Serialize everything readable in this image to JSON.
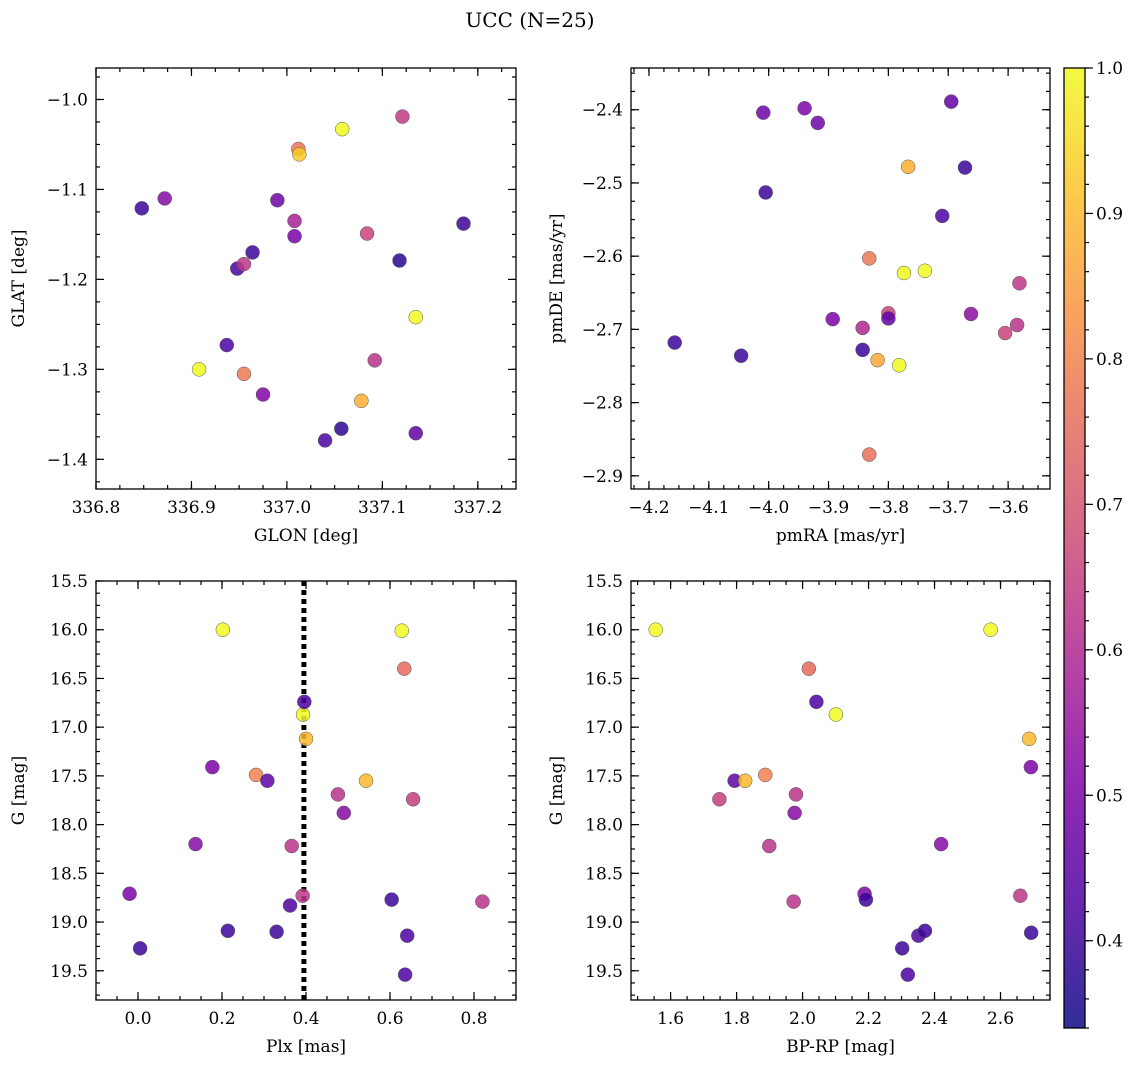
{
  "figure": {
    "title": "UCC (N=25)"
  },
  "colorbar": {
    "min": 0.34,
    "max": 1.0,
    "ticks": [
      0.4,
      0.5,
      0.6,
      0.7,
      0.8,
      0.9,
      1.0
    ],
    "tick_labels": [
      "0.4",
      "0.5",
      "0.6",
      "0.7",
      "0.8",
      "0.9",
      "1.0"
    ],
    "colormap": "plasma"
  },
  "chart_data": [
    {
      "type": "scatter",
      "xlabel": "GLON [deg]",
      "ylabel": "GLAT [deg]",
      "xlim": [
        336.8,
        337.24
      ],
      "ylim": [
        -1.433,
        -0.965
      ],
      "y_inverted": false,
      "xticks": [
        336.8,
        336.9,
        337.0,
        337.1,
        337.2
      ],
      "xtick_labels": [
        "336.8",
        "336.9",
        "337.0",
        "337.1",
        "337.2"
      ],
      "yticks": [
        -1.4,
        -1.3,
        -1.2,
        -1.1,
        -1.0
      ],
      "ytick_labels": [
        "−1.4",
        "−1.3",
        "−1.2",
        "−1.1",
        "−1.0"
      ],
      "points": [
        {
          "x": 336.848,
          "y": -1.121,
          "c": 0.4
        },
        {
          "x": 336.872,
          "y": -1.11,
          "c": 0.52
        },
        {
          "x": 336.908,
          "y": -1.3,
          "c": 1.0
        },
        {
          "x": 336.937,
          "y": -1.273,
          "c": 0.42
        },
        {
          "x": 336.948,
          "y": -1.188,
          "c": 0.42
        },
        {
          "x": 336.955,
          "y": -1.183,
          "c": 0.63
        },
        {
          "x": 336.955,
          "y": -1.305,
          "c": 0.78
        },
        {
          "x": 336.964,
          "y": -1.17,
          "c": 0.4
        },
        {
          "x": 336.975,
          "y": -1.328,
          "c": 0.51
        },
        {
          "x": 336.99,
          "y": -1.112,
          "c": 0.48
        },
        {
          "x": 337.008,
          "y": -1.135,
          "c": 0.58
        },
        {
          "x": 337.008,
          "y": -1.152,
          "c": 0.5
        },
        {
          "x": 337.012,
          "y": -1.055,
          "c": 0.77
        },
        {
          "x": 337.013,
          "y": -1.061,
          "c": 0.93
        },
        {
          "x": 337.04,
          "y": -1.379,
          "c": 0.42
        },
        {
          "x": 337.057,
          "y": -1.366,
          "c": 0.38
        },
        {
          "x": 337.058,
          "y": -1.033,
          "c": 1.0
        },
        {
          "x": 337.078,
          "y": -1.335,
          "c": 0.88
        },
        {
          "x": 337.084,
          "y": -1.149,
          "c": 0.66
        },
        {
          "x": 337.092,
          "y": -1.29,
          "c": 0.62
        },
        {
          "x": 337.118,
          "y": -1.179,
          "c": 0.38
        },
        {
          "x": 337.121,
          "y": -1.019,
          "c": 0.64
        },
        {
          "x": 337.135,
          "y": -1.242,
          "c": 1.0
        },
        {
          "x": 337.135,
          "y": -1.371,
          "c": 0.46
        },
        {
          "x": 337.185,
          "y": -1.138,
          "c": 0.4
        }
      ]
    },
    {
      "type": "scatter",
      "xlabel": "pmRA [mas/yr]",
      "ylabel": "pmDE [mas/yr]",
      "xlim": [
        -4.23,
        -3.53
      ],
      "ylim": [
        -2.918,
        -2.343
      ],
      "y_inverted": false,
      "xticks": [
        -4.2,
        -4.1,
        -4.0,
        -3.9,
        -3.8,
        -3.7,
        -3.6
      ],
      "xtick_labels": [
        "−4.2",
        "−4.1",
        "−4.0",
        "−3.9",
        "−3.8",
        "−3.7",
        "−3.6"
      ],
      "yticks": [
        -2.9,
        -2.8,
        -2.7,
        -2.6,
        -2.5,
        -2.4
      ],
      "ytick_labels": [
        "−2.9",
        "−2.8",
        "−2.7",
        "−2.6",
        "−2.5",
        "−2.4"
      ],
      "points": [
        {
          "x": -4.157,
          "y": -2.718,
          "c": 0.4
        },
        {
          "x": -4.046,
          "y": -2.736,
          "c": 0.4
        },
        {
          "x": -4.009,
          "y": -2.404,
          "c": 0.48
        },
        {
          "x": -4.005,
          "y": -2.513,
          "c": 0.4
        },
        {
          "x": -3.94,
          "y": -2.398,
          "c": 0.5
        },
        {
          "x": -3.918,
          "y": -2.418,
          "c": 0.48
        },
        {
          "x": -3.893,
          "y": -2.686,
          "c": 0.5
        },
        {
          "x": -3.843,
          "y": -2.698,
          "c": 0.6
        },
        {
          "x": -3.843,
          "y": -2.728,
          "c": 0.4
        },
        {
          "x": -3.832,
          "y": -2.603,
          "c": 0.78
        },
        {
          "x": -3.832,
          "y": -2.871,
          "c": 0.76
        },
        {
          "x": -3.818,
          "y": -2.742,
          "c": 0.87
        },
        {
          "x": -3.8,
          "y": -2.678,
          "c": 0.66
        },
        {
          "x": -3.8,
          "y": -2.685,
          "c": 0.45
        },
        {
          "x": -3.782,
          "y": -2.749,
          "c": 1.0
        },
        {
          "x": -3.774,
          "y": -2.623,
          "c": 1.0
        },
        {
          "x": -3.767,
          "y": -2.478,
          "c": 0.88
        },
        {
          "x": -3.739,
          "y": -2.62,
          "c": 1.0
        },
        {
          "x": -3.71,
          "y": -2.545,
          "c": 0.42
        },
        {
          "x": -3.695,
          "y": -2.389,
          "c": 0.46
        },
        {
          "x": -3.672,
          "y": -2.479,
          "c": 0.4
        },
        {
          "x": -3.662,
          "y": -2.679,
          "c": 0.53
        },
        {
          "x": -3.605,
          "y": -2.705,
          "c": 0.66
        },
        {
          "x": -3.585,
          "y": -2.694,
          "c": 0.62
        },
        {
          "x": -3.581,
          "y": -2.637,
          "c": 0.63
        }
      ]
    },
    {
      "type": "scatter",
      "xlabel": "Plx [mas]",
      "ylabel": "G [mag]",
      "xlim": [
        -0.1,
        0.9
      ],
      "ylim": [
        19.8,
        15.5
      ],
      "y_inverted": true,
      "xticks": [
        0.0,
        0.2,
        0.4,
        0.6,
        0.8
      ],
      "xtick_labels": [
        "0.0",
        "0.2",
        "0.4",
        "0.6",
        "0.8"
      ],
      "yticks": [
        15.5,
        16.0,
        16.5,
        17.0,
        17.5,
        18.0,
        18.5,
        19.0,
        19.5
      ],
      "ytick_labels": [
        "15.5",
        "16.0",
        "16.5",
        "17.0",
        "17.5",
        "18.0",
        "18.5",
        "19.0",
        "19.5"
      ],
      "vline": {
        "x": 0.395,
        "style": "dotted"
      },
      "points": [
        {
          "x": -0.02,
          "y": 18.71,
          "c": 0.5
        },
        {
          "x": 0.005,
          "y": 19.27,
          "c": 0.4
        },
        {
          "x": 0.137,
          "y": 18.2,
          "c": 0.52
        },
        {
          "x": 0.177,
          "y": 17.41,
          "c": 0.5
        },
        {
          "x": 0.202,
          "y": 16.0,
          "c": 1.0
        },
        {
          "x": 0.214,
          "y": 19.09,
          "c": 0.4
        },
        {
          "x": 0.281,
          "y": 17.49,
          "c": 0.8
        },
        {
          "x": 0.308,
          "y": 17.55,
          "c": 0.45
        },
        {
          "x": 0.33,
          "y": 19.1,
          "c": 0.4
        },
        {
          "x": 0.362,
          "y": 18.83,
          "c": 0.42
        },
        {
          "x": 0.366,
          "y": 18.22,
          "c": 0.62
        },
        {
          "x": 0.392,
          "y": 18.73,
          "c": 0.63
        },
        {
          "x": 0.393,
          "y": 16.87,
          "c": 1.0
        },
        {
          "x": 0.396,
          "y": 16.74,
          "c": 0.42
        },
        {
          "x": 0.4,
          "y": 17.12,
          "c": 0.9
        },
        {
          "x": 0.476,
          "y": 17.69,
          "c": 0.62
        },
        {
          "x": 0.49,
          "y": 17.88,
          "c": 0.52
        },
        {
          "x": 0.543,
          "y": 17.55,
          "c": 0.9
        },
        {
          "x": 0.604,
          "y": 18.77,
          "c": 0.4
        },
        {
          "x": 0.628,
          "y": 16.01,
          "c": 1.0
        },
        {
          "x": 0.634,
          "y": 16.4,
          "c": 0.75
        },
        {
          "x": 0.636,
          "y": 19.54,
          "c": 0.42
        },
        {
          "x": 0.641,
          "y": 19.14,
          "c": 0.42
        },
        {
          "x": 0.655,
          "y": 17.74,
          "c": 0.65
        },
        {
          "x": 0.82,
          "y": 18.79,
          "c": 0.62
        }
      ]
    },
    {
      "type": "scatter",
      "xlabel": "BP-RP [mag]",
      "ylabel": "G [mag]",
      "xlim": [
        1.48,
        2.75
      ],
      "ylim": [
        19.8,
        15.5
      ],
      "y_inverted": true,
      "xticks": [
        1.6,
        1.8,
        2.0,
        2.2,
        2.4,
        2.6
      ],
      "xtick_labels": [
        "1.6",
        "1.8",
        "2.0",
        "2.2",
        "2.4",
        "2.6"
      ],
      "yticks": [
        15.5,
        16.0,
        16.5,
        17.0,
        17.5,
        18.0,
        18.5,
        19.0,
        19.5
      ],
      "ytick_labels": [
        "15.5",
        "16.0",
        "16.5",
        "17.0",
        "17.5",
        "18.0",
        "18.5",
        "19.0",
        "19.5"
      ],
      "points": [
        {
          "x": 1.555,
          "y": 16.0,
          "c": 1.0
        },
        {
          "x": 1.748,
          "y": 17.74,
          "c": 0.65
        },
        {
          "x": 1.794,
          "y": 17.55,
          "c": 0.45
        },
        {
          "x": 1.826,
          "y": 17.55,
          "c": 0.9
        },
        {
          "x": 1.887,
          "y": 17.49,
          "c": 0.8
        },
        {
          "x": 1.899,
          "y": 18.22,
          "c": 0.62
        },
        {
          "x": 1.973,
          "y": 18.79,
          "c": 0.62
        },
        {
          "x": 1.976,
          "y": 17.88,
          "c": 0.52
        },
        {
          "x": 1.98,
          "y": 17.69,
          "c": 0.62
        },
        {
          "x": 2.019,
          "y": 16.4,
          "c": 0.75
        },
        {
          "x": 2.042,
          "y": 16.74,
          "c": 0.42
        },
        {
          "x": 2.101,
          "y": 16.87,
          "c": 1.0
        },
        {
          "x": 2.188,
          "y": 18.71,
          "c": 0.5
        },
        {
          "x": 2.192,
          "y": 18.77,
          "c": 0.4
        },
        {
          "x": 2.302,
          "y": 19.27,
          "c": 0.4
        },
        {
          "x": 2.319,
          "y": 19.54,
          "c": 0.42
        },
        {
          "x": 2.351,
          "y": 19.14,
          "c": 0.42
        },
        {
          "x": 2.371,
          "y": 19.09,
          "c": 0.4
        },
        {
          "x": 2.42,
          "y": 18.2,
          "c": 0.52
        },
        {
          "x": 2.57,
          "y": 16.0,
          "c": 1.0
        },
        {
          "x": 2.66,
          "y": 18.73,
          "c": 0.63
        },
        {
          "x": 2.687,
          "y": 17.12,
          "c": 0.9
        },
        {
          "x": 2.692,
          "y": 17.41,
          "c": 0.5
        },
        {
          "x": 2.693,
          "y": 19.11,
          "c": 0.4
        }
      ]
    }
  ]
}
